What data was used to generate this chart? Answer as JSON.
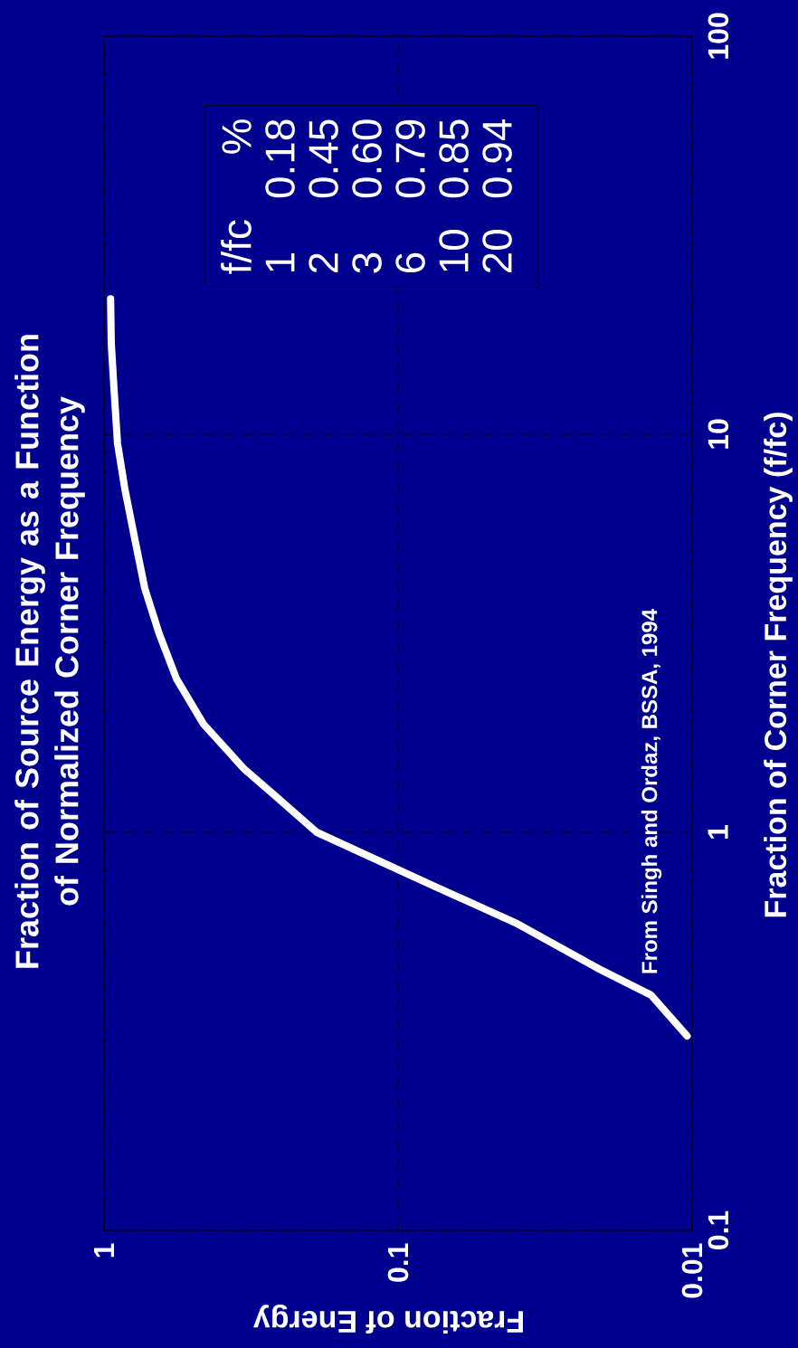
{
  "chart_data": {
    "type": "line",
    "title": "Fraction of Source Energy as a Function of Normalized Corner Frequency",
    "xlabel": "Fraction of Energy",
    "ylabel": "Fraction of Corner Frequency (f/fc)",
    "log": "xy",
    "xlim": [
      1,
      0.01
    ],
    "ylim": [
      0.1,
      100
    ],
    "xticks": [
      1,
      0.1,
      0.01
    ],
    "yticks": [
      0.1,
      1,
      10,
      100
    ],
    "grid": true,
    "line_style": "solid",
    "marker": "none",
    "x": [
      0.0104,
      0.0138,
      0.021,
      0.04,
      0.075,
      0.189,
      0.26,
      0.333,
      0.459,
      0.567,
      0.65,
      0.727,
      0.78,
      0.85,
      0.9,
      0.925,
      0.945,
      0.95
    ],
    "series": [
      {
        "color": "#ffffff",
        "values": [
          0.308,
          0.39,
          0.456,
          0.593,
          0.731,
          1.0,
          1.23,
          1.44,
          1.87,
          2.43,
          3.16,
          4.1,
          5.3,
          7.3,
          9.5,
          13,
          16.9,
          21.9
        ]
      }
    ],
    "annotations": [
      "From Singh and Ordaz, BSSA, 1994",
      "f/fc",
      "%",
      "1",
      "0.18",
      "2",
      "0.45",
      "3",
      "0.60",
      "6",
      "0.79",
      "10",
      "0.85",
      "20",
      "0.94"
    ]
  }
}
